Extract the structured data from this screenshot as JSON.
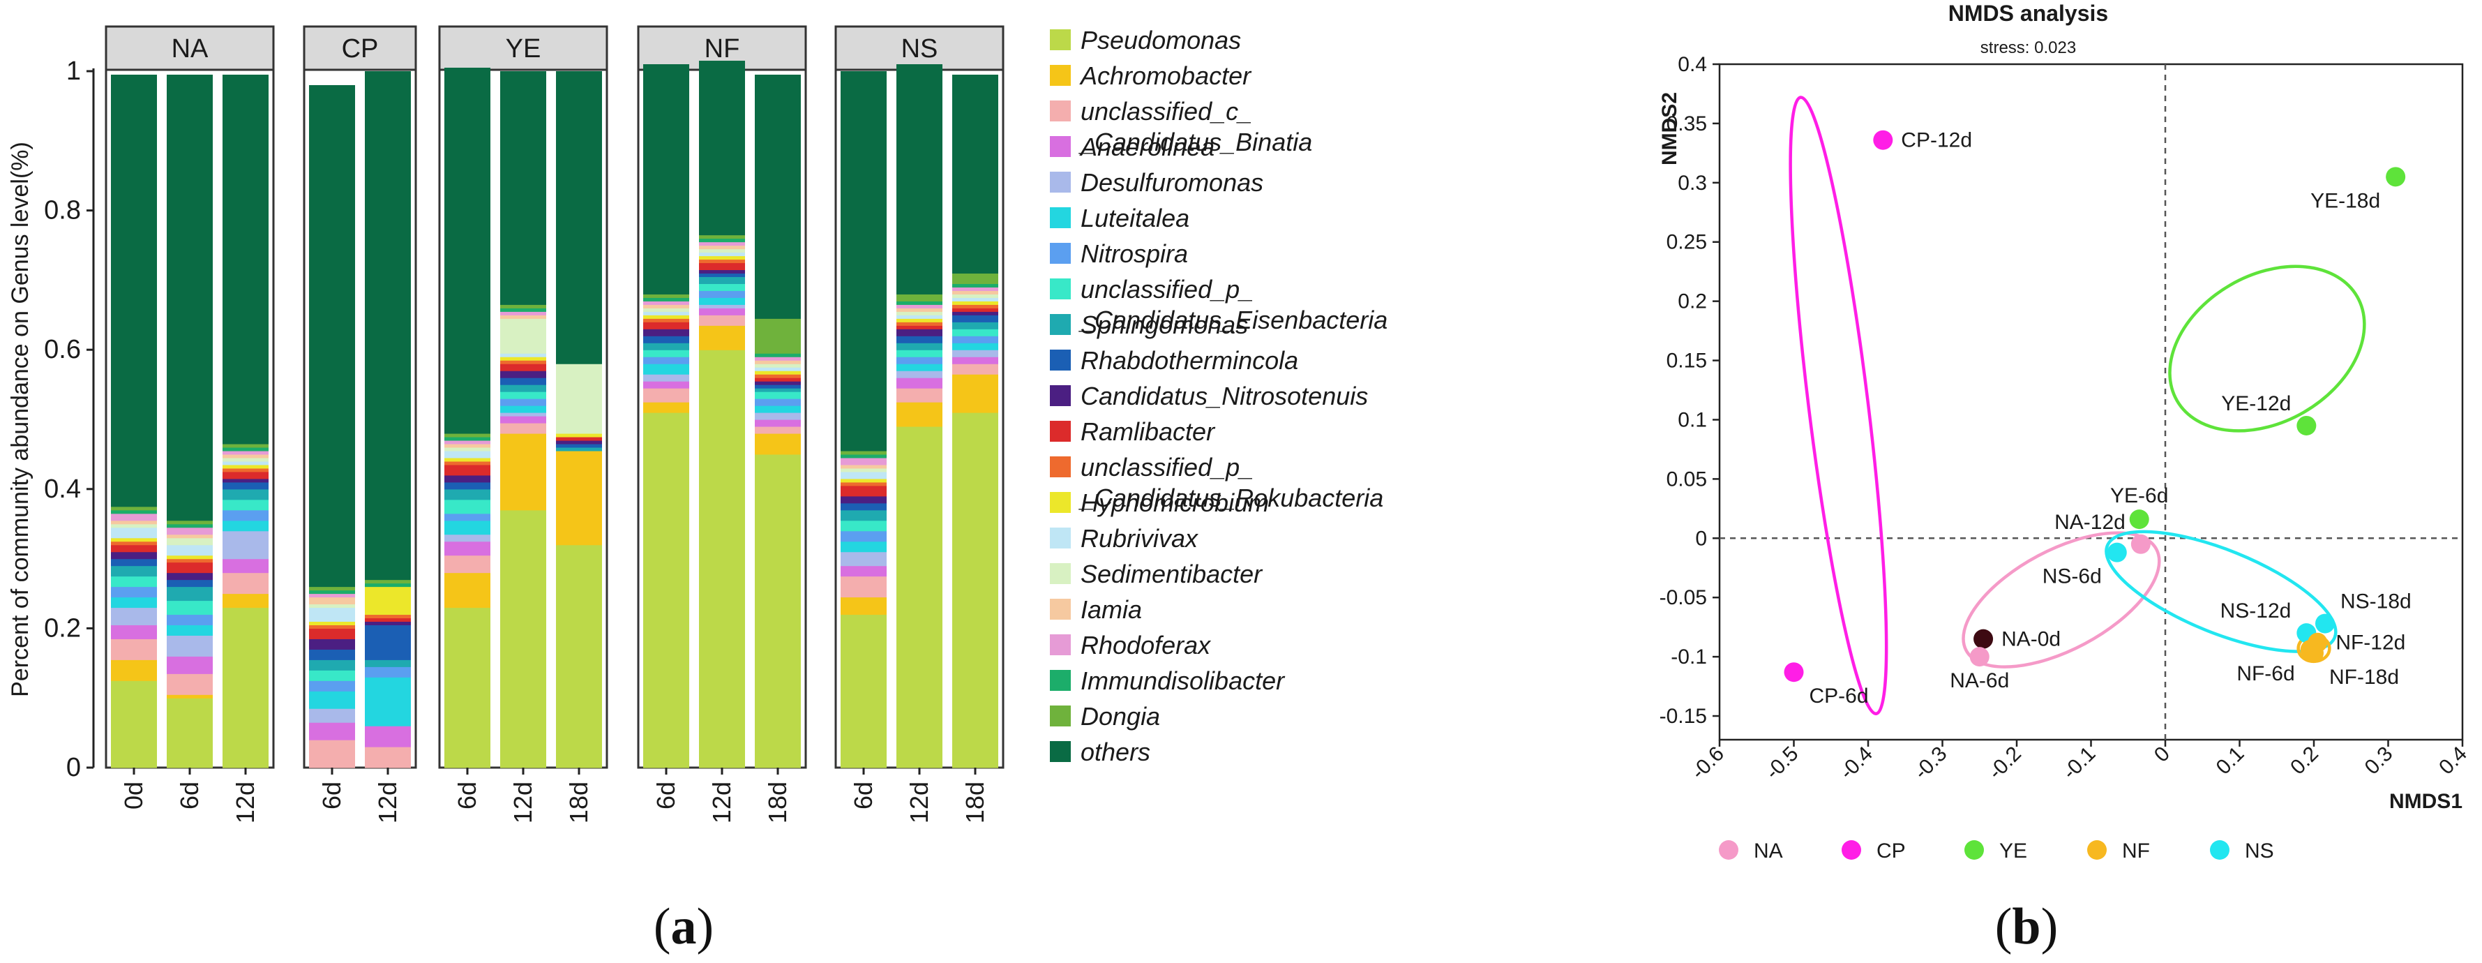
{
  "chart_data": [
    {
      "type": "bar",
      "subtype": "stacked-100-percent",
      "panel_label": "a",
      "ylabel": "Percent of community abundance on Genus level(%)",
      "ylim": [
        0,
        1
      ],
      "yticks": [
        "0",
        "0.2",
        "0.4",
        "0.6",
        "0.8",
        "1"
      ],
      "genera": [
        {
          "name": "Pseudomonas",
          "color": "#bcd949"
        },
        {
          "name": "Achromobacter",
          "color": "#f5c518"
        },
        {
          "name": "unclassified_c_\n_Candidatus_Binatia",
          "color": "#f4aeae"
        },
        {
          "name": "Anaerolinea",
          "color": "#d86fe0"
        },
        {
          "name": "Desulfuromonas",
          "color": "#a9b9ea"
        },
        {
          "name": "Luteitalea",
          "color": "#23d6e0"
        },
        {
          "name": "Nitrospira",
          "color": "#5b9ff0"
        },
        {
          "name": "unclassified_p_\n_Candidatus_Eisenbacteria",
          "color": "#38e8c8"
        },
        {
          "name": "Sphingomonas",
          "color": "#1faab0"
        },
        {
          "name": "Rhabdothermincola",
          "color": "#1b5fb4"
        },
        {
          "name": "Candidatus_Nitrosotenuis",
          "color": "#4b1f82"
        },
        {
          "name": "Ramlibacter",
          "color": "#dc2b2b"
        },
        {
          "name": "unclassified_p_\n_Candidatus_Rokubacteria",
          "color": "#ee6a2e"
        },
        {
          "name": "Hyphomicrobium",
          "color": "#ece72a"
        },
        {
          "name": "Rubrivivax",
          "color": "#bfe6f5"
        },
        {
          "name": "Sedimentibacter",
          "color": "#d8f1c2"
        },
        {
          "name": "Iamia",
          "color": "#f6c9a0"
        },
        {
          "name": "Rhodoferax",
          "color": "#e69bd6"
        },
        {
          "name": "Immundisolibacter",
          "color": "#1cad6a"
        },
        {
          "name": "Dongia",
          "color": "#6fb23c"
        },
        {
          "name": "others",
          "color": "#0a6b44"
        }
      ],
      "groups": [
        {
          "name": "NA",
          "samples": [
            {
              "label": "0d",
              "values": [
                0.125,
                0.03,
                0.03,
                0.02,
                0.025,
                0.015,
                0.015,
                0.015,
                0.015,
                0.01,
                0.01,
                0.01,
                0.005,
                0.005,
                0.015,
                0.005,
                0.005,
                0.01,
                0.005,
                0.005,
                0.62
              ]
            },
            {
              "label": "6d",
              "values": [
                0.1,
                0.005,
                0.03,
                0.025,
                0.03,
                0.015,
                0.015,
                0.02,
                0.02,
                0.01,
                0.01,
                0.015,
                0.005,
                0.005,
                0.015,
                0.01,
                0.005,
                0.01,
                0.005,
                0.005,
                0.64
              ]
            },
            {
              "label": "12d",
              "values": [
                0.23,
                0.02,
                0.03,
                0.02,
                0.04,
                0.015,
                0.015,
                0.015,
                0.015,
                0.01,
                0.005,
                0.01,
                0.005,
                0.005,
                0.005,
                0.005,
                0.005,
                0.005,
                0.005,
                0.005,
                0.53
              ]
            }
          ]
        },
        {
          "name": "CP",
          "samples": [
            {
              "label": "6d",
              "values": [
                0.0,
                0.0,
                0.04,
                0.025,
                0.02,
                0.025,
                0.015,
                0.015,
                0.015,
                0.015,
                0.015,
                0.015,
                0.005,
                0.005,
                0.02,
                0.005,
                0.01,
                0.005,
                0.005,
                0.005,
                0.72
              ]
            },
            {
              "label": "12d",
              "values": [
                0.0,
                0.0,
                0.03,
                0.03,
                0.0,
                0.07,
                0.015,
                0.0,
                0.01,
                0.05,
                0.005,
                0.005,
                0.005,
                0.04,
                0.0,
                0.0,
                0.0,
                0.0,
                0.005,
                0.005,
                0.73
              ]
            }
          ]
        },
        {
          "name": "YE",
          "samples": [
            {
              "label": "6d",
              "values": [
                0.23,
                0.05,
                0.025,
                0.02,
                0.01,
                0.02,
                0.01,
                0.02,
                0.015,
                0.01,
                0.01,
                0.015,
                0.005,
                0.005,
                0.01,
                0.005,
                0.005,
                0.005,
                0.005,
                0.005,
                0.525
              ]
            },
            {
              "label": "12d",
              "values": [
                0.37,
                0.11,
                0.015,
                0.01,
                0.005,
                0.01,
                0.01,
                0.01,
                0.01,
                0.01,
                0.01,
                0.01,
                0.005,
                0.005,
                0.005,
                0.05,
                0.005,
                0.005,
                0.005,
                0.005,
                0.335
              ]
            },
            {
              "label": "18d",
              "values": [
                0.32,
                0.135,
                0.0,
                0.0,
                0.0,
                0.0,
                0.0,
                0.0,
                0.005,
                0.005,
                0.005,
                0.005,
                0.0,
                0.005,
                0.0,
                0.1,
                0.0,
                0.0,
                0.0,
                0.0,
                0.42
              ]
            }
          ]
        },
        {
          "name": "NF",
          "samples": [
            {
              "label": "6d",
              "values": [
                0.51,
                0.015,
                0.02,
                0.01,
                0.01,
                0.015,
                0.01,
                0.01,
                0.01,
                0.01,
                0.01,
                0.01,
                0.005,
                0.005,
                0.005,
                0.005,
                0.005,
                0.005,
                0.005,
                0.005,
                0.33
              ]
            },
            {
              "label": "12d",
              "values": [
                0.6,
                0.035,
                0.015,
                0.01,
                0.005,
                0.01,
                0.01,
                0.01,
                0.01,
                0.005,
                0.005,
                0.01,
                0.005,
                0.005,
                0.005,
                0.005,
                0.005,
                0.005,
                0.005,
                0.005,
                0.25
              ]
            },
            {
              "label": "18d",
              "values": [
                0.45,
                0.03,
                0.01,
                0.01,
                0.01,
                0.01,
                0.01,
                0.01,
                0.005,
                0.005,
                0.005,
                0.005,
                0.005,
                0.005,
                0.005,
                0.005,
                0.005,
                0.005,
                0.005,
                0.05,
                0.35
              ]
            }
          ]
        },
        {
          "name": "NS",
          "samples": [
            {
              "label": "6d",
              "values": [
                0.22,
                0.025,
                0.03,
                0.015,
                0.02,
                0.015,
                0.015,
                0.015,
                0.015,
                0.01,
                0.01,
                0.015,
                0.005,
                0.005,
                0.01,
                0.005,
                0.005,
                0.01,
                0.005,
                0.005,
                0.545
              ]
            },
            {
              "label": "12d",
              "values": [
                0.49,
                0.035,
                0.02,
                0.015,
                0.01,
                0.01,
                0.01,
                0.01,
                0.01,
                0.01,
                0.01,
                0.005,
                0.005,
                0.005,
                0.005,
                0.005,
                0.005,
                0.005,
                0.005,
                0.01,
                0.33
              ]
            },
            {
              "label": "18d",
              "values": [
                0.51,
                0.055,
                0.015,
                0.01,
                0.01,
                0.01,
                0.01,
                0.01,
                0.01,
                0.01,
                0.005,
                0.005,
                0.005,
                0.005,
                0.005,
                0.005,
                0.005,
                0.005,
                0.005,
                0.015,
                0.285
              ]
            }
          ]
        }
      ]
    },
    {
      "type": "scatter",
      "panel_label": "b",
      "title": "NMDS analysis",
      "subtitle": "stress: 0.023",
      "xlabel": "NMDS1",
      "ylabel": "NMDS2",
      "xlim": [
        -0.6,
        0.4
      ],
      "ylim": [
        -0.17,
        0.4
      ],
      "xticks": [
        -0.6,
        -0.5,
        -0.4,
        -0.3,
        -0.2,
        -0.1,
        0,
        0.1,
        0.2,
        0.3,
        0.4
      ],
      "xtick_labels": [
        "-0.6",
        "-0.5",
        "-0.4",
        "-0.3",
        "-0.2",
        "-0.1",
        "0",
        "0.1",
        "0.2",
        "0.3",
        "0.4"
      ],
      "yticks": [
        -0.15,
        -0.1,
        -0.05,
        0,
        0.05,
        0.1,
        0.15,
        0.2,
        0.25,
        0.3,
        0.35,
        0.4
      ],
      "ytick_labels": [
        "-0.15",
        "-0.1",
        "-0.05",
        "0",
        "0.05",
        "0.1",
        "0.15",
        "0.2",
        "0.25",
        "0.3",
        "0.35",
        "0.4"
      ],
      "points": [
        {
          "label": "CP-12d",
          "group": "CP",
          "x": -0.38,
          "y": 0.336,
          "color": "#ff1ee6",
          "lab_pos": "right"
        },
        {
          "label": "CP-6d",
          "group": "CP",
          "x": -0.5,
          "y": -0.113,
          "color": "#ff1ee6",
          "lab_pos": "below-right"
        },
        {
          "label": "YE-18d",
          "group": "YE",
          "x": 0.31,
          "y": 0.305,
          "color": "#5ee33a",
          "lab_pos": "below-left"
        },
        {
          "label": "YE-12d",
          "group": "YE",
          "x": 0.19,
          "y": 0.095,
          "color": "#5ee33a",
          "lab_pos": "above-left"
        },
        {
          "label": "YE-6d",
          "group": "YE",
          "x": -0.035,
          "y": 0.016,
          "color": "#5ee33a",
          "lab_pos": "above"
        },
        {
          "label": "NA-12d",
          "group": "NA",
          "x": -0.033,
          "y": -0.005,
          "color": "#f59ac8",
          "lab_pos": "above-left"
        },
        {
          "label": "NA-0d",
          "group": "NA",
          "x": -0.245,
          "y": -0.085,
          "color": "#3d0a12",
          "lab_pos": "right"
        },
        {
          "label": "NA-6d",
          "group": "NA",
          "x": -0.25,
          "y": -0.1,
          "color": "#f59ac8",
          "lab_pos": "below"
        },
        {
          "label": "NS-6d",
          "group": "NS",
          "x": -0.065,
          "y": -0.012,
          "color": "#22e6f0",
          "lab_pos": "below-left"
        },
        {
          "label": "NS-12d",
          "group": "NS",
          "x": 0.19,
          "y": -0.08,
          "color": "#22e6f0",
          "lab_pos": "above-left"
        },
        {
          "label": "NS-18d",
          "group": "NS",
          "x": 0.215,
          "y": -0.072,
          "color": "#22e6f0",
          "lab_pos": "above-right"
        },
        {
          "label": "NF-12d",
          "group": "NF",
          "x": 0.205,
          "y": -0.088,
          "color": "#f7b820",
          "lab_pos": "right"
        },
        {
          "label": "NF-6d",
          "group": "NF",
          "x": 0.195,
          "y": -0.094,
          "color": "#f7b820",
          "lab_pos": "below-left"
        },
        {
          "label": "NF-18d",
          "group": "NF",
          "x": 0.2,
          "y": -0.097,
          "color": "#f7b820",
          "lab_pos": "below-right"
        }
      ],
      "ellipses": [
        {
          "group": "CP",
          "color": "#ff1ee6",
          "cx": -0.44,
          "cy": 0.112,
          "rx": 0.04,
          "ry": 0.262,
          "angle": 7
        },
        {
          "group": "YE",
          "color": "#5ee33a",
          "cx": 0.137,
          "cy": 0.16,
          "rx": 0.14,
          "ry": 0.062,
          "angle": 30
        },
        {
          "group": "NA",
          "color": "#f59ac8",
          "cx": -0.14,
          "cy": -0.052,
          "rx": 0.145,
          "ry": 0.042,
          "angle": 28
        },
        {
          "group": "NS",
          "color": "#22e6f0",
          "cx": 0.075,
          "cy": -0.045,
          "rx": 0.165,
          "ry": 0.035,
          "angle": -22
        },
        {
          "group": "NF",
          "color": "#f7b820",
          "cx": 0.2,
          "cy": -0.093,
          "rx": 0.021,
          "ry": 0.011,
          "angle": 0
        }
      ],
      "legend": [
        {
          "name": "NA",
          "color": "#f59ac8"
        },
        {
          "name": "CP",
          "color": "#ff1ee6"
        },
        {
          "name": "YE",
          "color": "#5ee33a"
        },
        {
          "name": "NF",
          "color": "#f7b820"
        },
        {
          "name": "NS",
          "color": "#22e6f0"
        }
      ]
    }
  ]
}
